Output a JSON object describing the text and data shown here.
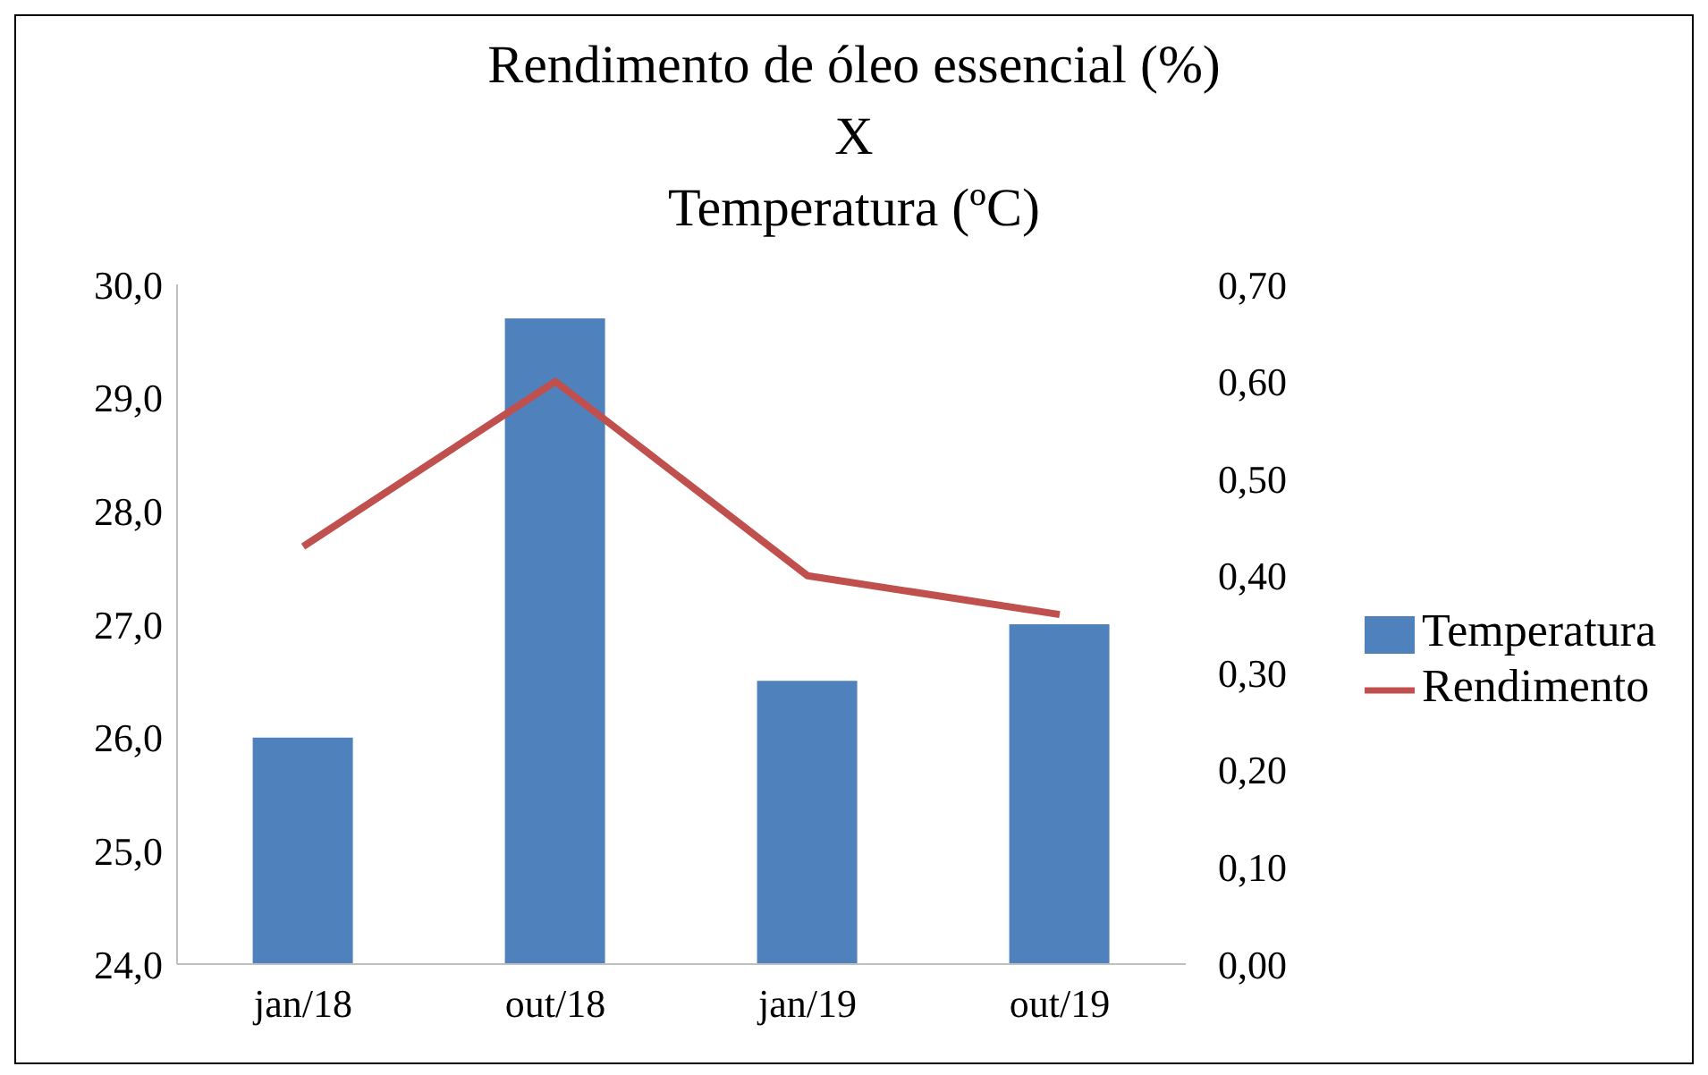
{
  "chart_data": {
    "type": "bar",
    "title": "Rendimento de óleo essencial (%)\nX\nTemperatura (ºC)",
    "categories": [
      "jan/18",
      "out/18",
      "jan/19",
      "out/19"
    ],
    "series": [
      {
        "name": "Temperatura",
        "color": "#4f81bd",
        "values": [
          26.0,
          29.7,
          26.5,
          27.0
        ]
      },
      {
        "name": "Rendimento",
        "type": "line",
        "axis": "y2",
        "color": "#c0504d",
        "values": [
          0.43,
          0.6,
          0.4,
          0.36
        ]
      }
    ],
    "ylim": [
      24,
      30
    ],
    "yticks": [
      {
        "value": 24,
        "label": "24,0"
      },
      {
        "value": 25,
        "label": "25,0"
      },
      {
        "value": 26,
        "label": "26,0"
      },
      {
        "value": 27,
        "label": "27,0"
      },
      {
        "value": 28,
        "label": "28,0"
      },
      {
        "value": 29,
        "label": "29,0"
      },
      {
        "value": 30,
        "label": "30,0"
      }
    ],
    "y2lim": [
      0,
      0.7
    ],
    "y2ticks": [
      {
        "value": 0,
        "label": "0,00"
      },
      {
        "value": 0.1,
        "label": "0,10"
      },
      {
        "value": 0.2,
        "label": "0,20"
      },
      {
        "value": 0.3,
        "label": "0,30"
      },
      {
        "value": 0.4,
        "label": "0,40"
      },
      {
        "value": 0.5,
        "label": "0,50"
      },
      {
        "value": 0.6,
        "label": "0,60"
      },
      {
        "value": 0.7,
        "label": "0,70"
      }
    ],
    "legend": "right",
    "marker": "none",
    "grid": false
  }
}
